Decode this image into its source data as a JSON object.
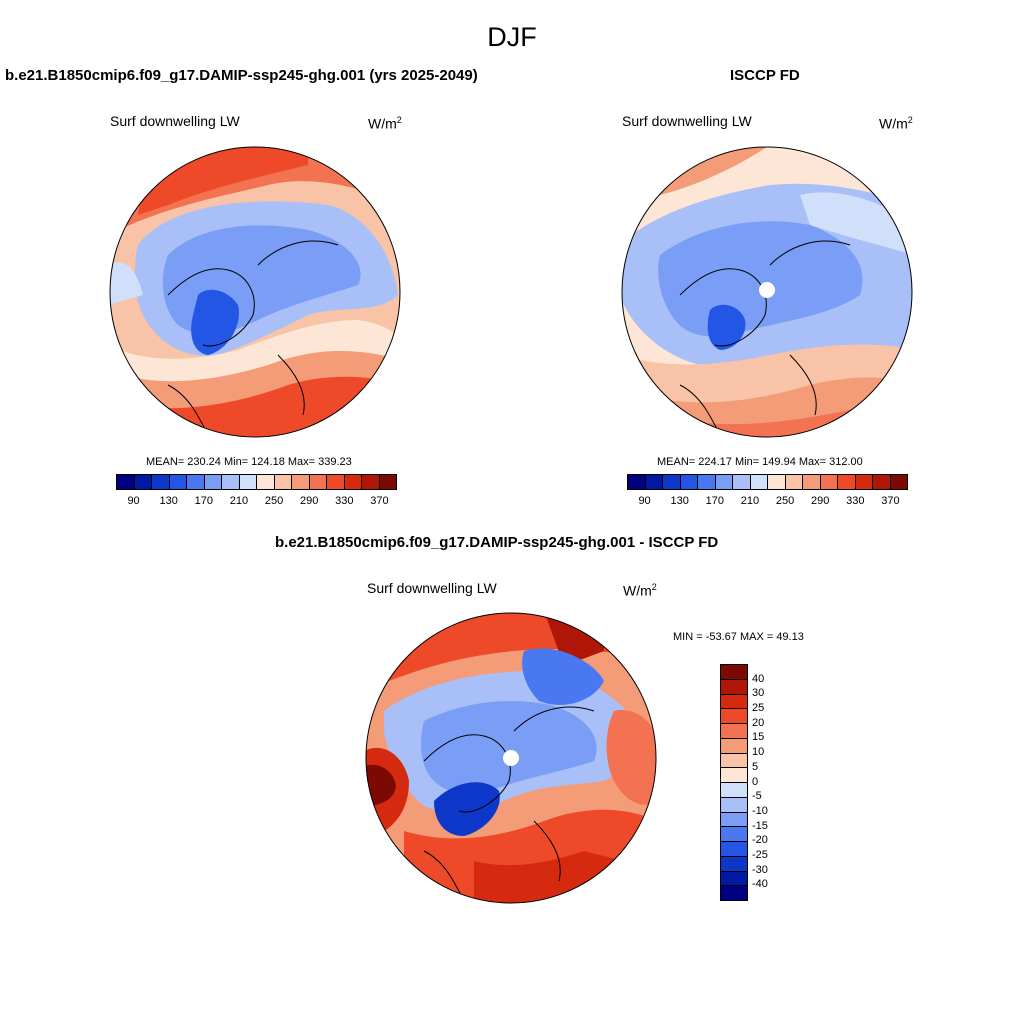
{
  "figure": {
    "title": "DJF"
  },
  "panels": [
    {
      "title": "b.e21.B1850cmip6.f09_g17.DAMIP-ssp245-ghg.001 (yrs 2025-2049)",
      "variable": "Surf downwelling LW",
      "units_base": "W/m",
      "units_exp": "2",
      "stats": "MEAN= 230.24  Min= 124.18  Max= 339.23",
      "mean": 230.24,
      "min": 124.18,
      "max": 339.23,
      "pole_hole": false
    },
    {
      "title": "ISCCP FD",
      "variable": "Surf downwelling LW",
      "units_base": "W/m",
      "units_exp": "2",
      "stats": "MEAN= 224.17  Min= 149.94  Max= 312.00",
      "mean": 224.17,
      "min": 149.94,
      "max": 312.0,
      "pole_hole": true
    },
    {
      "title": "b.e21.B1850cmip6.f09_g17.DAMIP-ssp245-ghg.001 - ISCCP FD",
      "variable": "Surf downwelling LW",
      "units_base": "W/m",
      "units_exp": "2",
      "stats": "MIN = -53.67 MAX =  49.13",
      "min": -53.67,
      "max": 49.13,
      "pole_hole": true
    }
  ],
  "colorbar_abs": {
    "colors": [
      "#000080",
      "#0019a5",
      "#0d37c8",
      "#2456e6",
      "#4a78f0",
      "#7a9ef5",
      "#a8c0f7",
      "#d0e0fa",
      "#fde6d6",
      "#f8c3a6",
      "#f49b78",
      "#f27252",
      "#ee4a2a",
      "#d52a10",
      "#b01608",
      "#7d0a02"
    ],
    "tick_labels": [
      "90",
      "130",
      "170",
      "210",
      "250",
      "290",
      "330",
      "370"
    ],
    "ticks": [
      90,
      130,
      170,
      210,
      250,
      290,
      330,
      370
    ]
  },
  "colorbar_diff": {
    "colors": [
      "#7d0a02",
      "#b01608",
      "#d52a10",
      "#ee4a2a",
      "#f27252",
      "#f49b78",
      "#f8c3a6",
      "#fde6d6",
      "#d0e0fa",
      "#a8c0f7",
      "#7a9ef5",
      "#4a78f0",
      "#2456e6",
      "#0d37c8",
      "#0019a5",
      "#000080"
    ],
    "tick_labels": [
      "40",
      "30",
      "25",
      "20",
      "15",
      "10",
      "5",
      "0",
      "-5",
      "-10",
      "-15",
      "-20",
      "-25",
      "-30",
      "-40"
    ]
  },
  "chart_data": [
    {
      "type": "heatmap",
      "title": "b.e21.B1850cmip6.f09_g17.DAMIP-ssp245-ghg.001 (yrs 2025-2049)",
      "projection": "north polar stereographic",
      "variable": "Surf downwelling LW",
      "units": "W/m2",
      "mean": 230.24,
      "min": 124.18,
      "max": 339.23,
      "levels": [
        90,
        110,
        130,
        150,
        170,
        190,
        210,
        230,
        250,
        270,
        290,
        310,
        330,
        350,
        370
      ]
    },
    {
      "type": "heatmap",
      "title": "ISCCP FD",
      "projection": "north polar stereographic",
      "variable": "Surf downwelling LW",
      "units": "W/m2",
      "mean": 224.17,
      "min": 149.94,
      "max": 312.0,
      "levels": [
        90,
        110,
        130,
        150,
        170,
        190,
        210,
        230,
        250,
        270,
        290,
        310,
        330,
        350,
        370
      ]
    },
    {
      "type": "heatmap",
      "title": "b.e21.B1850cmip6.f09_g17.DAMIP-ssp245-ghg.001 - ISCCP FD",
      "projection": "north polar stereographic",
      "variable": "Surf downwelling LW",
      "units": "W/m2",
      "min": -53.67,
      "max": 49.13,
      "levels": [
        -40,
        -30,
        -25,
        -20,
        -15,
        -10,
        -5,
        0,
        5,
        10,
        15,
        20,
        25,
        30,
        40
      ]
    }
  ]
}
